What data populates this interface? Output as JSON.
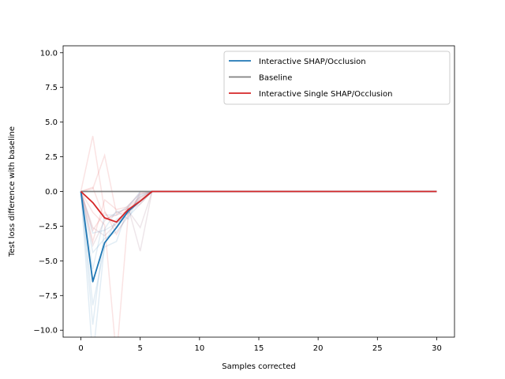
{
  "chart_data": {
    "type": "line",
    "xlabel": "Samples corrected",
    "ylabel": "Test loss difference with baseline",
    "xlim": [
      -1.5,
      31.5
    ],
    "ylim": [
      -10.5,
      10.5
    ],
    "x_ticks": [
      0,
      5,
      10,
      15,
      20,
      25,
      30
    ],
    "y_ticks": [
      -10.0,
      -7.5,
      -5.0,
      -2.5,
      0.0,
      2.5,
      5.0,
      7.5,
      10.0
    ],
    "y_tick_labels": [
      "−10.0",
      "−7.5",
      "−5.0",
      "−2.5",
      "0.0",
      "2.5",
      "5.0",
      "7.5",
      "10.0"
    ],
    "x": [
      0,
      1,
      2,
      3,
      4,
      5,
      6,
      7,
      8,
      9,
      10,
      11,
      12,
      13,
      14,
      15,
      16,
      17,
      18,
      19,
      20,
      21,
      22,
      23,
      24,
      25,
      26,
      27,
      28,
      29,
      30
    ],
    "legend": {
      "placement": "top-right"
    },
    "series": [
      {
        "name": "Interactive SHAP/Occlusion",
        "color": "#1f77b4",
        "values": [
          0,
          -6.5,
          -3.7,
          -2.6,
          -1.4,
          -0.7,
          0,
          0,
          0,
          0,
          0,
          0,
          0,
          0,
          0,
          0,
          0,
          0,
          0,
          0,
          0,
          0,
          0,
          0,
          0,
          0,
          0,
          0,
          0,
          0,
          0
        ]
      },
      {
        "name": "Baseline",
        "color": "#808080",
        "values": [
          0,
          0,
          0,
          0,
          0,
          0,
          0,
          0,
          0,
          0,
          0,
          0,
          0,
          0,
          0,
          0,
          0,
          0,
          0,
          0,
          0,
          0,
          0,
          0,
          0,
          0,
          0,
          0,
          0,
          0,
          0
        ]
      },
      {
        "name": "Interactive Single SHAP/Occlusion",
        "color": "#d62728",
        "values": [
          0,
          -0.8,
          -1.9,
          -2.2,
          -1.3,
          -0.7,
          0,
          0,
          0,
          0,
          0,
          0,
          0,
          0,
          0,
          0,
          0,
          0,
          0,
          0,
          0,
          0,
          0,
          0,
          0,
          0,
          0,
          0,
          0,
          0,
          0
        ]
      }
    ],
    "faint_runs": [
      {
        "color": "#1f77b4",
        "x": [
          0,
          1,
          2,
          3,
          4,
          5,
          6
        ],
        "values": [
          0,
          -12,
          -3.8,
          -2.0,
          -1.6,
          -0.4,
          0
        ]
      },
      {
        "color": "#1f77b4",
        "x": [
          0,
          1,
          2,
          3,
          4,
          5,
          6
        ],
        "values": [
          0,
          -9.6,
          -2.7,
          -1.4,
          -2.0,
          0.0,
          0
        ]
      },
      {
        "color": "#1f77b4",
        "x": [
          0,
          1,
          2,
          3,
          4,
          5,
          6
        ],
        "values": [
          0,
          -5.6,
          -1.7,
          -1.7,
          -1.0,
          -0.2,
          0
        ]
      },
      {
        "color": "#1f77b4",
        "x": [
          0,
          1,
          2,
          3,
          4,
          5,
          6
        ],
        "values": [
          0,
          -3.0,
          -2.8,
          -2.3,
          -1.5,
          -0.3,
          0
        ]
      },
      {
        "color": "#1f77b4",
        "x": [
          0,
          1,
          2,
          3,
          4,
          5,
          6
        ],
        "values": [
          0,
          -8.2,
          -4.0,
          -3.6,
          -1.1,
          0.0,
          0
        ]
      },
      {
        "color": "#1f77b4",
        "x": [
          0,
          1,
          2,
          3,
          4,
          5,
          6
        ],
        "values": [
          0,
          -4.4,
          -3.4,
          -2.9,
          -1.8,
          -0.9,
          0
        ]
      },
      {
        "color": "#d62728",
        "x": [
          0,
          1,
          2,
          3,
          4,
          5,
          6
        ],
        "values": [
          0,
          4.0,
          -1.4,
          -3.1,
          -1.6,
          -0.2,
          0
        ]
      },
      {
        "color": "#d62728",
        "x": [
          0,
          1,
          2,
          3,
          4,
          5,
          6
        ],
        "values": [
          0,
          0.2,
          2.6,
          -1.6,
          -1.2,
          -0.6,
          0
        ]
      },
      {
        "color": "#d62728",
        "x": [
          0,
          1,
          2,
          3,
          4,
          5,
          6
        ],
        "values": [
          0,
          -3.6,
          -0.6,
          -1.3,
          -1.1,
          -0.4,
          0
        ]
      },
      {
        "color": "#d62728",
        "x": [
          0,
          1,
          2,
          3,
          4,
          5,
          6
        ],
        "values": [
          0,
          -1.5,
          -2.4,
          -12,
          -1.5,
          -0.5,
          0
        ]
      },
      {
        "color": "#d62728",
        "x": [
          0,
          1,
          2,
          3,
          4,
          5,
          6
        ],
        "values": [
          0,
          0.3,
          -2.0,
          -1.7,
          -1.4,
          -0.9,
          0
        ]
      },
      {
        "color": "#d62728",
        "x": [
          0,
          1,
          2,
          3,
          4,
          5,
          6
        ],
        "values": [
          0,
          -2.8,
          -1.5,
          -2.6,
          -1.0,
          -0.1,
          0
        ]
      },
      {
        "color": "#7a3f5a",
        "x": [
          0,
          1,
          2,
          3,
          4,
          5,
          6
        ],
        "values": [
          0,
          -3.9,
          -2.1,
          -1.5,
          -1.2,
          -4.3,
          0
        ]
      },
      {
        "color": "#7a3f5a",
        "x": [
          0,
          1,
          2,
          3,
          4,
          5,
          6
        ],
        "values": [
          0,
          -2.6,
          -3.2,
          -2.3,
          -1.4,
          -2.6,
          0
        ]
      }
    ]
  }
}
